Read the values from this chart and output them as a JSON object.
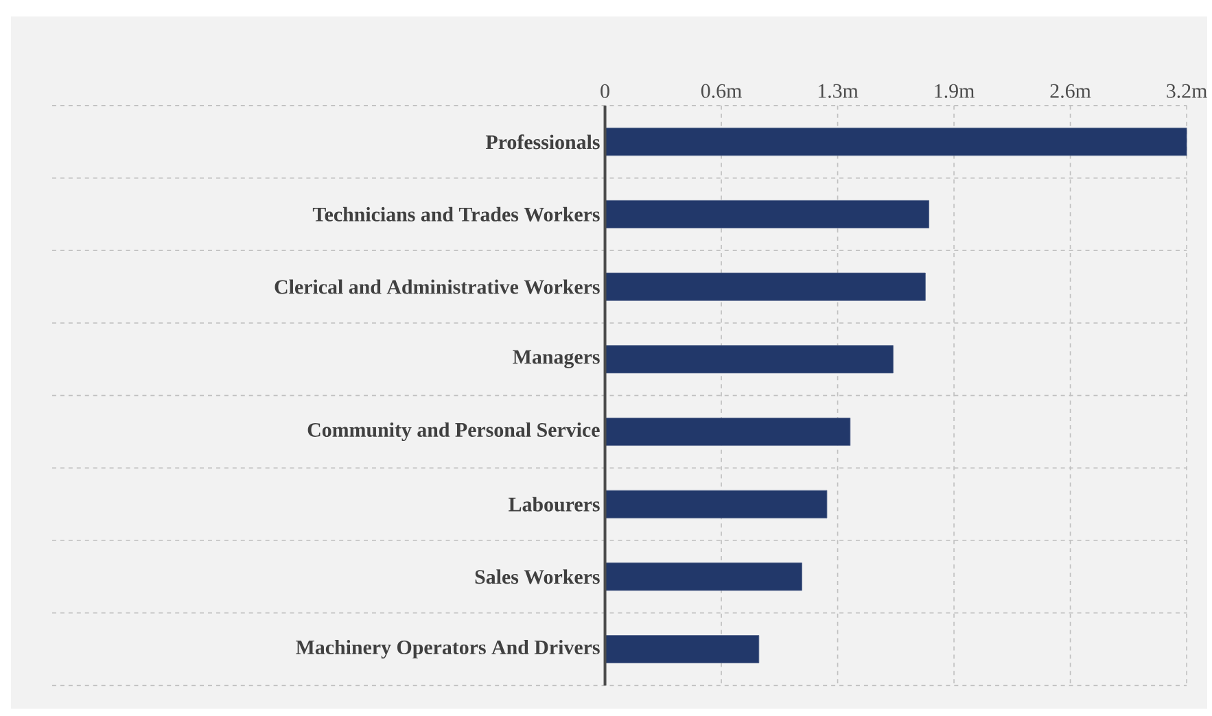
{
  "chart_data": {
    "type": "bar",
    "orientation": "horizontal",
    "categories": [
      "Professionals",
      "Technicians and Trades Workers",
      "Clerical and Administrative Workers",
      "Managers",
      "Community and Personal Service",
      "Labourers",
      "Sales Workers",
      "Machinery Operators And Drivers"
    ],
    "values": [
      3.25,
      1.81,
      1.79,
      1.61,
      1.37,
      1.24,
      1.1,
      0.86
    ],
    "color": "#22386a",
    "xlim": [
      0,
      3.25
    ],
    "xticks": [
      0,
      {
        "value": 0.65,
        "label": "0.6m"
      },
      {
        "value": 1.3,
        "label": "1.3m"
      },
      {
        "value": 1.95,
        "label": "1.9m"
      },
      {
        "value": 2.6,
        "label": "2.6m"
      },
      {
        "value": 3.25,
        "label": "3.2m"
      }
    ],
    "grid": true
  }
}
